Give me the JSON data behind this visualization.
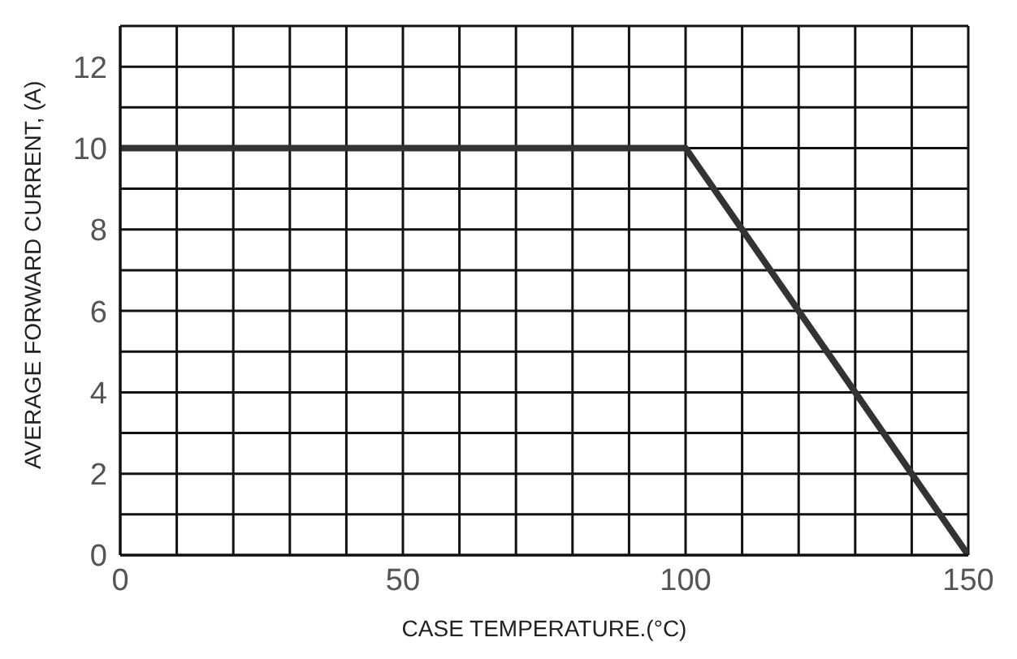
{
  "chart_data": {
    "type": "line",
    "xlabel": "CASE TEMPERATURE.(°C)",
    "ylabel": "AVERAGE FORWARD CURRENT, (A)",
    "x": [
      0,
      100,
      150
    ],
    "series": [
      {
        "color": "#333333",
        "values": [
          10,
          10,
          0
        ]
      }
    ],
    "xlim": [
      0,
      150
    ],
    "xticks": [
      0,
      {
        "value": 10,
        "label": null
      },
      {
        "value": 20,
        "label": null
      },
      {
        "value": 30,
        "label": null
      },
      {
        "value": 40,
        "label": null
      },
      50,
      {
        "value": 60,
        "label": null
      },
      {
        "value": 70,
        "label": null
      },
      {
        "value": 80,
        "label": null
      },
      {
        "value": 90,
        "label": null
      },
      100,
      {
        "value": 110,
        "label": null
      },
      {
        "value": 120,
        "label": null
      },
      {
        "value": 130,
        "label": null
      },
      {
        "value": 140,
        "label": null
      },
      150
    ],
    "ylim": [
      0,
      13
    ],
    "yticks": [
      0,
      {
        "value": 1,
        "label": null
      },
      2,
      {
        "value": 3,
        "label": null
      },
      4,
      {
        "value": 5,
        "label": null
      },
      6,
      {
        "value": 7,
        "label": null
      },
      8,
      {
        "value": 9,
        "label": null
      },
      10,
      {
        "value": 11,
        "label": null
      },
      12,
      {
        "value": 13,
        "label": null
      }
    ],
    "grid": true,
    "legend": false,
    "marker": "none",
    "line_style": "solid"
  }
}
